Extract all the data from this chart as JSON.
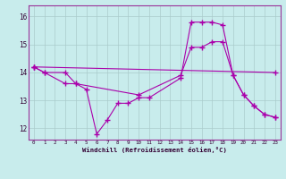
{
  "xlabel": "Windchill (Refroidissement éolien,°C)",
  "background_color": "#c8ecec",
  "line_color": "#aa00aa",
  "grid_color": "#aacccc",
  "xlim": [
    -0.5,
    23.5
  ],
  "ylim": [
    11.6,
    16.4
  ],
  "yticks": [
    12,
    13,
    14,
    15,
    16
  ],
  "xticks": [
    0,
    1,
    2,
    3,
    4,
    5,
    6,
    7,
    8,
    9,
    10,
    11,
    12,
    13,
    14,
    15,
    16,
    17,
    18,
    19,
    20,
    21,
    22,
    23
  ],
  "line1_x": [
    0,
    1,
    3,
    4,
    10,
    14,
    15,
    16,
    17,
    18,
    19,
    20,
    21,
    22,
    23
  ],
  "line1_y": [
    14.2,
    14.0,
    14.0,
    13.6,
    13.2,
    13.9,
    14.9,
    14.9,
    15.1,
    15.1,
    13.9,
    13.2,
    12.8,
    12.5,
    12.4
  ],
  "line2_x": [
    0,
    1,
    3,
    4,
    5,
    6,
    7,
    8,
    9,
    10,
    11,
    14,
    15,
    16,
    17,
    18,
    19,
    20,
    21,
    22,
    23
  ],
  "line2_y": [
    14.2,
    14.0,
    13.6,
    13.6,
    13.4,
    11.8,
    12.3,
    12.9,
    12.9,
    13.1,
    13.1,
    13.8,
    15.8,
    15.8,
    15.8,
    15.7,
    13.9,
    13.2,
    12.8,
    12.5,
    12.4
  ],
  "line3_x": [
    0,
    23
  ],
  "line3_y": [
    14.2,
    14.0
  ]
}
